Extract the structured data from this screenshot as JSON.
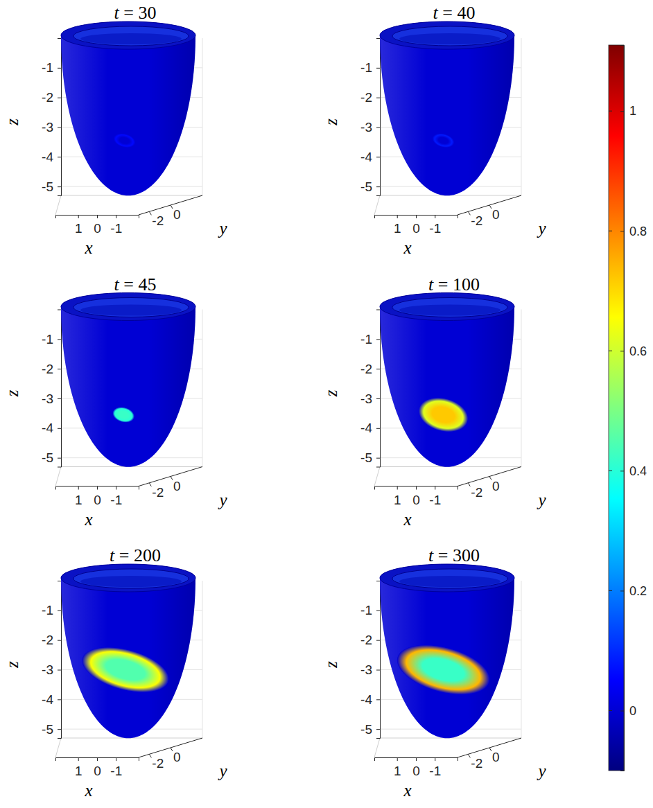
{
  "chart_data": [
    {
      "type": "surface",
      "title": "t = 30",
      "xlabel": "x",
      "ylabel": "y",
      "zlabel": "z",
      "xlim": [
        2.2,
        -2.2
      ],
      "xticks": [
        1,
        0,
        -1
      ],
      "ylim": [
        -3,
        3
      ],
      "yticks": [
        -2,
        0
      ],
      "zlim": [
        -5.3,
        0
      ],
      "zticks": [
        -1,
        -2,
        -3,
        -4,
        -5
      ],
      "grid": true,
      "background": 0,
      "spot": {
        "x": -1.45,
        "z": -3.45,
        "width": 0.75,
        "height": 0.45,
        "center_value": 0,
        "edge_value": 0.06
      }
    },
    {
      "type": "surface",
      "title": "t = 40",
      "xlabel": "x",
      "ylabel": "y",
      "zlabel": "z",
      "xlim": [
        2.2,
        -2.2
      ],
      "xticks": [
        1,
        0,
        -1
      ],
      "ylim": [
        -3,
        3
      ],
      "yticks": [
        -2,
        0
      ],
      "zlim": [
        -5.3,
        0
      ],
      "zticks": [
        -1,
        -2,
        -3,
        -4,
        -5
      ],
      "grid": true,
      "background": 0,
      "spot": {
        "x": -1.45,
        "z": -3.45,
        "width": 0.75,
        "height": 0.45,
        "center_value": 0,
        "edge_value": 0.08
      }
    },
    {
      "type": "surface",
      "title": "t = 45",
      "xlabel": "x",
      "ylabel": "y",
      "zlabel": "z",
      "xlim": [
        2.2,
        -2.2
      ],
      "xticks": [
        1,
        0,
        -1
      ],
      "ylim": [
        -3,
        3
      ],
      "yticks": [
        -2,
        0
      ],
      "zlim": [
        -5.3,
        0
      ],
      "zticks": [
        -1,
        -2,
        -3,
        -4,
        -5
      ],
      "grid": true,
      "background": 0,
      "spot": {
        "x": -1.4,
        "z": -3.55,
        "width": 0.75,
        "height": 0.5,
        "center_value": 0.42,
        "edge_value": 0.4
      }
    },
    {
      "type": "surface",
      "title": "t = 100",
      "xlabel": "x",
      "ylabel": "y",
      "zlabel": "z",
      "xlim": [
        2.2,
        -2.2
      ],
      "xticks": [
        1,
        0,
        -1
      ],
      "ylim": [
        -3,
        3
      ],
      "yticks": [
        -2,
        0
      ],
      "zlim": [
        -5.3,
        0
      ],
      "zticks": [
        -1,
        -2,
        -3,
        -4,
        -5
      ],
      "grid": true,
      "background": 0,
      "spot": {
        "x": -1.45,
        "z": -3.55,
        "width": 1.7,
        "height": 1.1,
        "center_value": 0.72,
        "edge_value": 0.62
      }
    },
    {
      "type": "surface",
      "title": "t = 200",
      "xlabel": "x",
      "ylabel": "y",
      "zlabel": "z",
      "xlim": [
        2.2,
        -2.2
      ],
      "xticks": [
        1,
        0,
        -1
      ],
      "ylim": [
        -3,
        3
      ],
      "yticks": [
        -2,
        0
      ],
      "zlim": [
        -5.3,
        0
      ],
      "zticks": [
        -1,
        -2,
        -3,
        -4,
        -5
      ],
      "grid": true,
      "background": 0,
      "spot": {
        "x": -1.5,
        "z": -3.0,
        "width": 3.0,
        "height": 1.35,
        "center_value": 0.45,
        "edge_value": 0.65
      }
    },
    {
      "type": "surface",
      "title": "t = 300",
      "xlabel": "x",
      "ylabel": "y",
      "zlabel": "z",
      "xlim": [
        2.2,
        -2.2
      ],
      "xticks": [
        1,
        0,
        -1
      ],
      "ylim": [
        -3,
        3
      ],
      "yticks": [
        -2,
        0
      ],
      "zlim": [
        -5.3,
        0
      ],
      "zticks": [
        -1,
        -2,
        -3,
        -4,
        -5
      ],
      "grid": true,
      "background": 0,
      "spot": {
        "x": -1.45,
        "z": -3.0,
        "width": 3.2,
        "height": 1.5,
        "center_value": 0.42,
        "edge_value": 0.74
      }
    }
  ],
  "colorbar": {
    "range": [
      -0.1,
      1.11
    ],
    "ticks": [
      0,
      0.2,
      0.4,
      0.6,
      0.8,
      1
    ]
  }
}
